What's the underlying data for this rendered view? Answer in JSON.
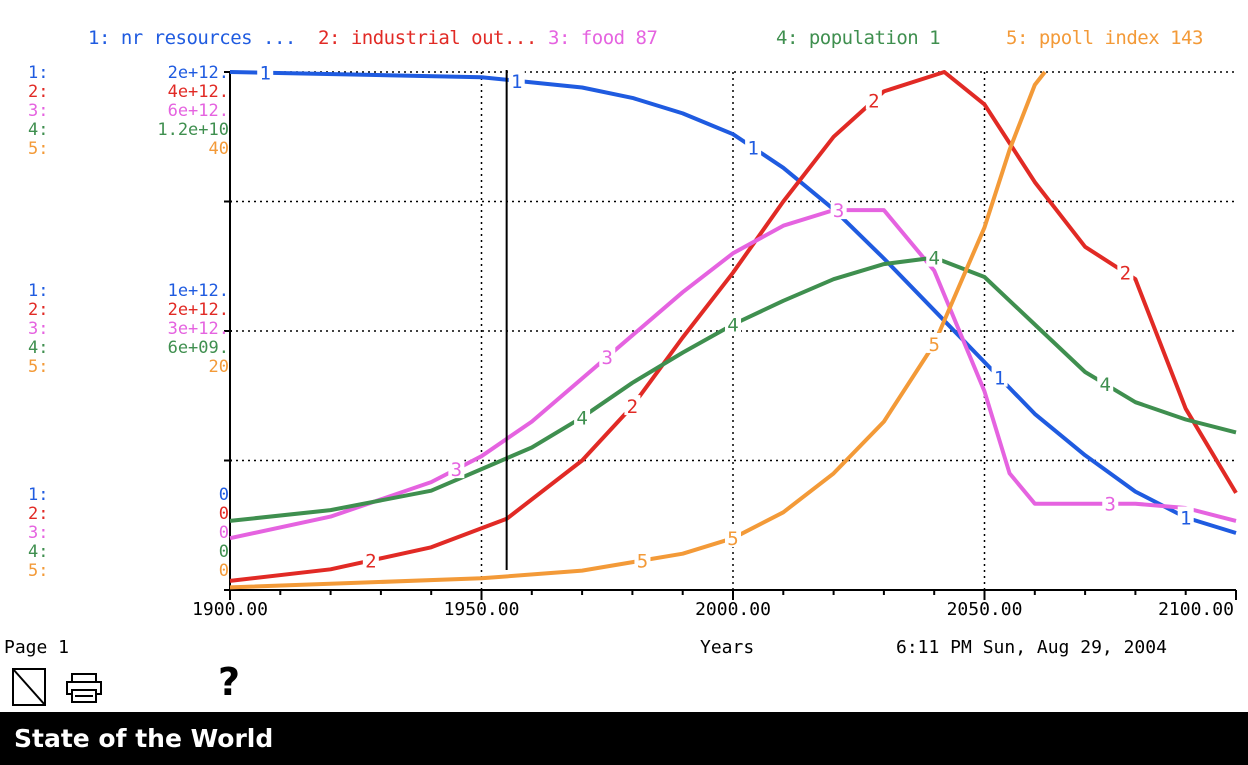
{
  "window": {
    "title": "State of the World",
    "page_label": "Page 1",
    "timestamp": "6:11 PM  Sun, Aug 29, 2004",
    "help_label": "?"
  },
  "legend": [
    {
      "label": "1: nr resources ...",
      "color": "#1f5be0"
    },
    {
      "label": "2: industrial out...",
      "color": "#e12a25"
    },
    {
      "label": "3: food 87",
      "color": "#e563e0"
    },
    {
      "label": "4: population 1",
      "color": "#3f8f4f"
    },
    {
      "label": "5: ppoll index 143",
      "color": "#f39a38"
    }
  ],
  "scales": {
    "top": [
      {
        "idx": "1:",
        "val": "2e+12."
      },
      {
        "idx": "2:",
        "val": "4e+12."
      },
      {
        "idx": "3:",
        "val": "6e+12."
      },
      {
        "idx": "4:",
        "val": "1.2e+10"
      },
      {
        "idx": "5:",
        "val": "40"
      }
    ],
    "middle": [
      {
        "idx": "1:",
        "val": "1e+12."
      },
      {
        "idx": "2:",
        "val": "2e+12."
      },
      {
        "idx": "3:",
        "val": "3e+12."
      },
      {
        "idx": "4:",
        "val": "6e+09."
      },
      {
        "idx": "5:",
        "val": "20"
      }
    ],
    "bottom": [
      {
        "idx": "1:",
        "val": "0"
      },
      {
        "idx": "2:",
        "val": "0"
      },
      {
        "idx": "3:",
        "val": "0"
      },
      {
        "idx": "4:",
        "val": "0"
      },
      {
        "idx": "5:",
        "val": "0"
      }
    ]
  },
  "chart_data": {
    "type": "line",
    "xlabel": "Years",
    "x_ticks": [
      "1900.00",
      "1950.00",
      "2000.00",
      "2050.00",
      "2100.00"
    ],
    "xlim": [
      1900,
      2100
    ],
    "cursor_x": 1955,
    "grid": true,
    "series": [
      {
        "name": "nr resources",
        "color": "#1f5be0",
        "ylim": [
          0,
          2000000000000.0
        ],
        "points": [
          [
            1900,
            2000000000000.0
          ],
          [
            1950,
            1980000000000.0
          ],
          [
            1960,
            1960000000000.0
          ],
          [
            1970,
            1940000000000.0
          ],
          [
            1980,
            1900000000000.0
          ],
          [
            1990,
            1840000000000.0
          ],
          [
            2000,
            1760000000000.0
          ],
          [
            2010,
            1630000000000.0
          ],
          [
            2020,
            1470000000000.0
          ],
          [
            2030,
            1280000000000.0
          ],
          [
            2040,
            1080000000000.0
          ],
          [
            2050,
            880000000000.0
          ],
          [
            2060,
            680000000000.0
          ],
          [
            2070,
            520000000000.0
          ],
          [
            2080,
            380000000000.0
          ],
          [
            2090,
            280000000000.0
          ],
          [
            2100,
            220000000000.0
          ]
        ]
      },
      {
        "name": "industrial out",
        "color": "#e12a25",
        "ylim": [
          0,
          4000000000000.0
        ],
        "points": [
          [
            1900,
            70000000000.0
          ],
          [
            1920,
            160000000000.0
          ],
          [
            1940,
            330000000000.0
          ],
          [
            1955,
            550000000000.0
          ],
          [
            1970,
            1000000000000.0
          ],
          [
            1980,
            1420000000000.0
          ],
          [
            1990,
            1950000000000.0
          ],
          [
            2000,
            2450000000000.0
          ],
          [
            2010,
            3000000000000.0
          ],
          [
            2020,
            3500000000000.0
          ],
          [
            2030,
            3850000000000.0
          ],
          [
            2042,
            4000000000000.0
          ],
          [
            2050,
            3750000000000.0
          ],
          [
            2060,
            3150000000000.0
          ],
          [
            2070,
            2650000000000.0
          ],
          [
            2080,
            2400000000000.0
          ],
          [
            2090,
            1400000000000.0
          ],
          [
            2100,
            750000000000.0
          ]
        ]
      },
      {
        "name": "food",
        "color": "#e563e0",
        "ylim": [
          0,
          6000000000000.0
        ],
        "points": [
          [
            1900,
            600000000000.0
          ],
          [
            1920,
            850000000000.0
          ],
          [
            1940,
            1250000000000.0
          ],
          [
            1950,
            1550000000000.0
          ],
          [
            1960,
            1950000000000.0
          ],
          [
            1970,
            2450000000000.0
          ],
          [
            1980,
            2950000000000.0
          ],
          [
            1990,
            3450000000000.0
          ],
          [
            2000,
            3900000000000.0
          ],
          [
            2010,
            4220000000000.0
          ],
          [
            2020,
            4400000000000.0
          ],
          [
            2030,
            4400000000000.0
          ],
          [
            2040,
            3700000000000.0
          ],
          [
            2050,
            2300000000000.0
          ],
          [
            2055,
            1350000000000.0
          ],
          [
            2060,
            1000000000000.0
          ],
          [
            2080,
            1000000000000.0
          ],
          [
            2090,
            950000000000.0
          ],
          [
            2100,
            800000000000.0
          ]
        ]
      },
      {
        "name": "population",
        "color": "#3f8f4f",
        "ylim": [
          0,
          12000000000.0
        ],
        "points": [
          [
            1900,
            1600000000.0
          ],
          [
            1920,
            1850000000.0
          ],
          [
            1940,
            2300000000.0
          ],
          [
            1950,
            2800000000.0
          ],
          [
            1960,
            3300000000.0
          ],
          [
            1970,
            4000000000.0
          ],
          [
            1980,
            4800000000.0
          ],
          [
            1990,
            5500000000.0
          ],
          [
            2000,
            6150000000.0
          ],
          [
            2010,
            6700000000.0
          ],
          [
            2020,
            7200000000.0
          ],
          [
            2030,
            7550000000.0
          ],
          [
            2040,
            7700000000.0
          ],
          [
            2050,
            7250000000.0
          ],
          [
            2060,
            6150000000.0
          ],
          [
            2070,
            5050000000.0
          ],
          [
            2080,
            4350000000.0
          ],
          [
            2090,
            3950000000.0
          ],
          [
            2100,
            3650000000.0
          ]
        ]
      },
      {
        "name": "ppoll index",
        "color": "#f39a38",
        "ylim": [
          0,
          40
        ],
        "points": [
          [
            1900,
            0.2
          ],
          [
            1950,
            0.9
          ],
          [
            1970,
            1.5
          ],
          [
            1990,
            2.8
          ],
          [
            2000,
            4.0
          ],
          [
            2010,
            6.0
          ],
          [
            2020,
            9.0
          ],
          [
            2030,
            13.0
          ],
          [
            2040,
            19.0
          ],
          [
            2050,
            28.0
          ],
          [
            2055,
            34.0
          ],
          [
            2060,
            39.0
          ],
          [
            2062,
            40.0
          ]
        ]
      }
    ]
  }
}
